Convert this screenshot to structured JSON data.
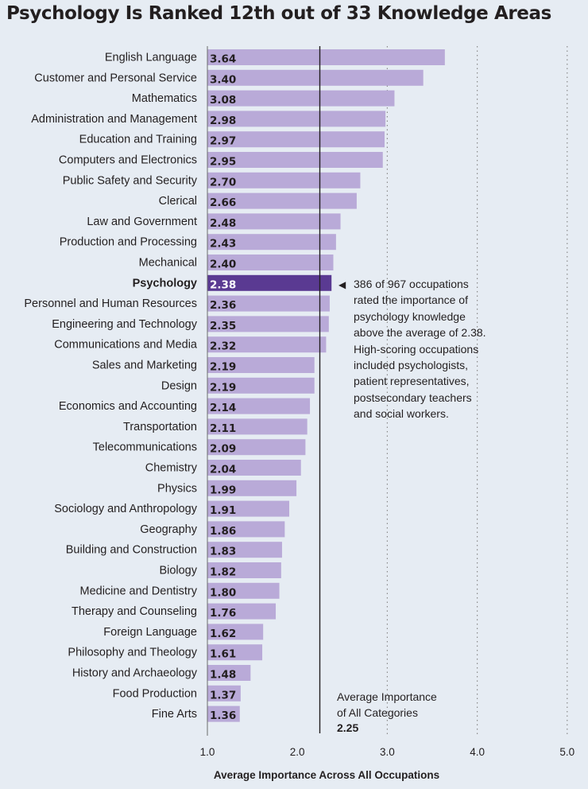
{
  "title": "Psychology Is Ranked 12th out of 33 Knowledge Areas",
  "colors": {
    "bar": "#b9aad8",
    "highlight": "#5a3a92",
    "label_text": "#231f20",
    "highlight_text": "#ffffff",
    "background": "#e6ecf3",
    "grid": "#8a8a8a",
    "avg_line": "#231f20"
  },
  "chart_data": {
    "type": "bar",
    "orientation": "horizontal",
    "title": "Psychology Is Ranked 12th out of 33 Knowledge Areas",
    "xlabel": "Average Importance Across All Occupations",
    "ylabel": "",
    "xlim": [
      1.0,
      5.0
    ],
    "xticks": [
      "1.0",
      "2.0",
      "3.0",
      "4.0",
      "5.0"
    ],
    "grid": true,
    "highlight": "Psychology",
    "reference_line": {
      "value": 2.25,
      "label": "Average Importance of All Categories",
      "value_label": "2.25"
    },
    "categories": [
      "English Language",
      "Customer and Personal Service",
      "Mathematics",
      "Administration and Management",
      "Education and Training",
      "Computers and Electronics",
      "Public Safety and Security",
      "Clerical",
      "Law and Government",
      "Production and Processing",
      "Mechanical",
      "Psychology",
      "Personnel and Human Resources",
      "Engineering and Technology",
      "Communications and Media",
      "Sales and Marketing",
      "Design",
      "Economics and Accounting",
      "Transportation",
      "Telecommunications",
      "Chemistry",
      "Physics",
      "Sociology and Anthropology",
      "Geography",
      "Building and Construction",
      "Biology",
      "Medicine and Dentistry",
      "Therapy and Counseling",
      "Foreign Language",
      "Philosophy and Theology",
      "History and Archaeology",
      "Food Production",
      "Fine Arts"
    ],
    "values": [
      3.64,
      3.4,
      3.08,
      2.98,
      2.97,
      2.95,
      2.7,
      2.66,
      2.48,
      2.43,
      2.4,
      2.38,
      2.36,
      2.35,
      2.32,
      2.19,
      2.19,
      2.14,
      2.11,
      2.09,
      2.04,
      1.99,
      1.91,
      1.86,
      1.83,
      1.82,
      1.8,
      1.76,
      1.62,
      1.61,
      1.48,
      1.37,
      1.36
    ],
    "value_labels": [
      "3.64",
      "3.40",
      "3.08",
      "2.98",
      "2.97",
      "2.95",
      "2.70",
      "2.66",
      "2.48",
      "2.43",
      "2.40",
      "2.38",
      "2.36",
      "2.35",
      "2.32",
      "2.19",
      "2.19",
      "2.14",
      "2.11",
      "2.09",
      "2.04",
      "1.99",
      "1.91",
      "1.86",
      "1.83",
      "1.82",
      "1.80",
      "1.76",
      "1.62",
      "1.61",
      "1.48",
      "1.37",
      "1.36"
    ]
  },
  "annotation": {
    "arrow": "◀",
    "lines": [
      "386 of 967 occupations",
      "rated the importance of",
      "psychology knowledge",
      "above the average of 2.38.",
      "High-scoring occupations",
      "included psychologists,",
      "patient representatives,",
      "postsecondary teachers",
      "and social workers."
    ]
  },
  "avg_note": {
    "line1": "Average Importance",
    "line2": "of All Categories",
    "value": "2.25"
  }
}
